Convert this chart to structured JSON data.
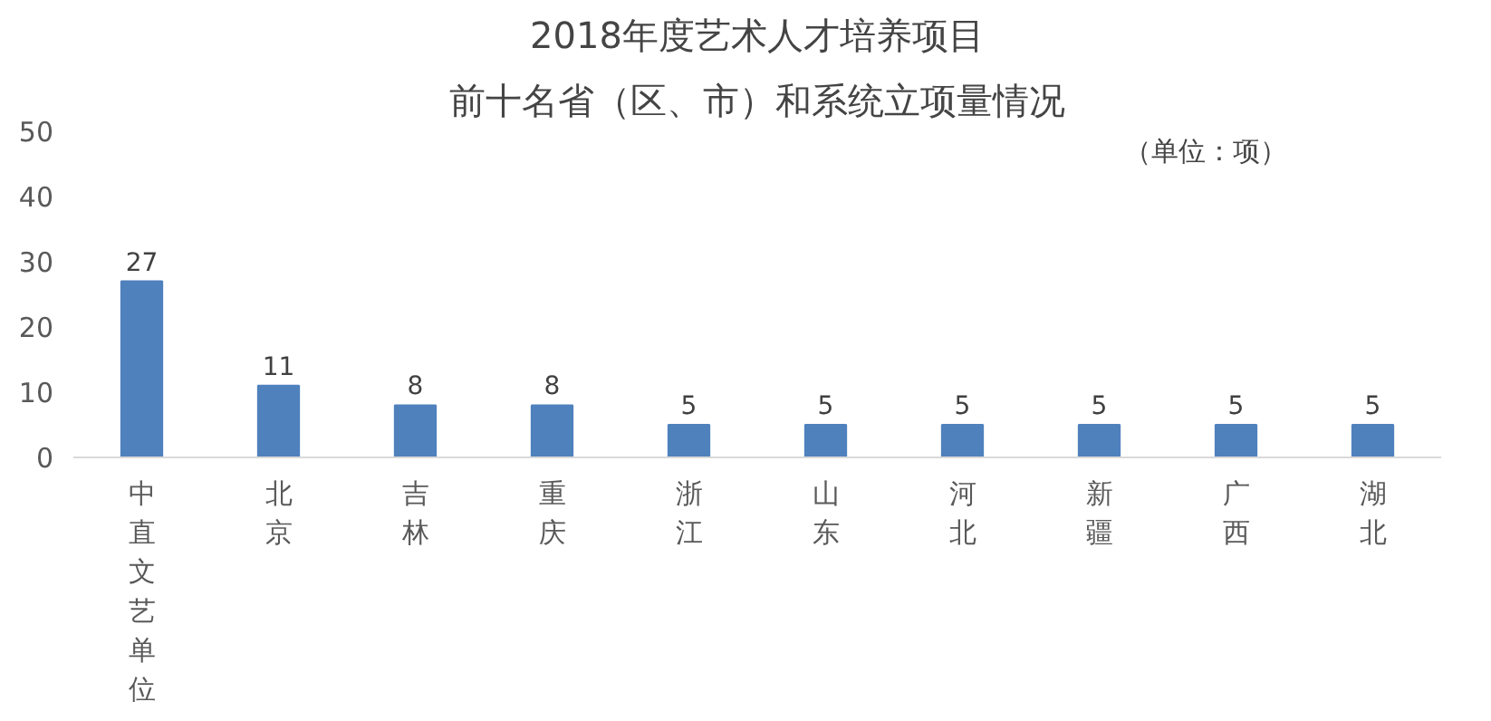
{
  "chart_data": {
    "type": "bar",
    "title": "2018年度艺术人才培养项目",
    "subtitle": "前十名省（区、市）和系统立项量情况",
    "annotations": [
      "（单位：项）"
    ],
    "categories": [
      "中直文艺单位",
      "北京",
      "吉林",
      "重庆",
      "浙江",
      "山东",
      "河北",
      "新疆",
      "广西",
      "湖北"
    ],
    "values": [
      27,
      11,
      8,
      8,
      5,
      5,
      5,
      5,
      5,
      5
    ],
    "color": "#4f81bd",
    "ylim": [
      0,
      50
    ],
    "yticks": [
      0,
      10,
      20,
      30,
      40,
      50
    ],
    "grid": false,
    "data_labels": true
  }
}
